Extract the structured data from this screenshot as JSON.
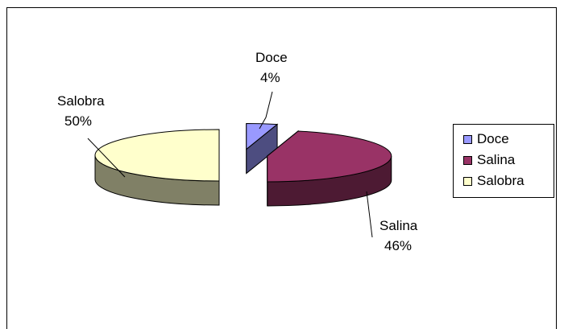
{
  "chart_data": {
    "type": "pie",
    "categories": [
      "Doce",
      "Salina",
      "Salobra"
    ],
    "values": [
      4,
      46,
      50
    ],
    "labels": [
      {
        "name": "Doce",
        "pct": "4%"
      },
      {
        "name": "Salina",
        "pct": "46%"
      },
      {
        "name": "Salobra",
        "pct": "50%"
      }
    ],
    "colors": {
      "Doce": {
        "top": "#9999ff",
        "side": "#4d4d80"
      },
      "Salina": {
        "top": "#993366",
        "side": "#4d1a33"
      },
      "Salobra": {
        "top": "#ffffcc",
        "side": "#808066"
      }
    },
    "exploded": true,
    "three_d": true,
    "legend": {
      "position": "right",
      "items": [
        "Doce",
        "Salina",
        "Salobra"
      ]
    }
  }
}
